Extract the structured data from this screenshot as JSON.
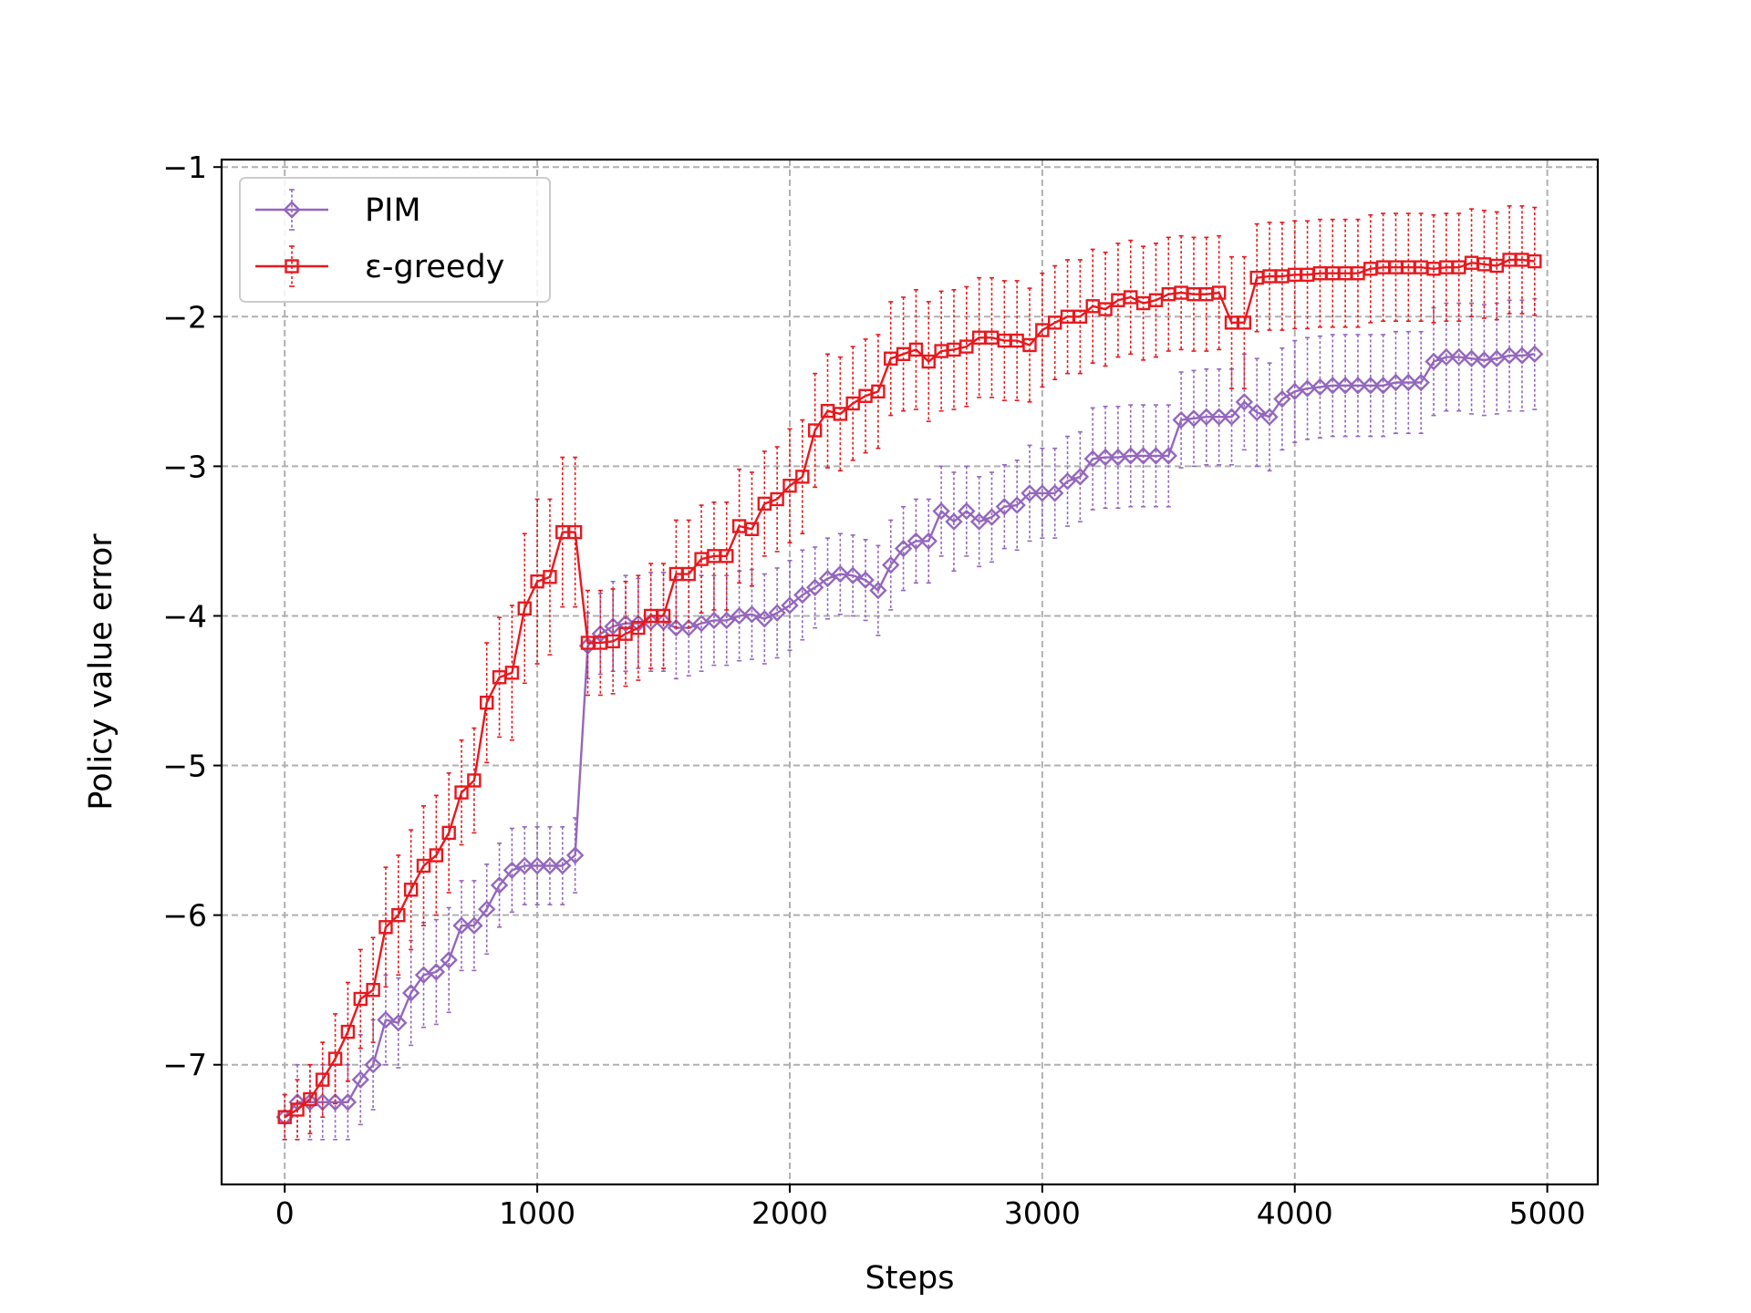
{
  "chart_data": {
    "type": "line",
    "title": "",
    "xlabel": "Steps",
    "ylabel": "Policy value error",
    "xlim": [
      -250,
      5200
    ],
    "ylim": [
      -7.8,
      -0.95
    ],
    "xticks": [
      0,
      1000,
      2000,
      3000,
      4000,
      5000
    ],
    "xtick_labels": [
      "0",
      "1000",
      "2000",
      "3000",
      "4000",
      "5000"
    ],
    "yticks": [
      -7,
      -6,
      -5,
      -4,
      -3,
      -2,
      -1
    ],
    "ytick_labels": [
      "−7",
      "−6",
      "−5",
      "−4",
      "−3",
      "−2",
      "−1"
    ],
    "grid": true,
    "legend_position": "top-left",
    "x": [
      0,
      50,
      100,
      150,
      200,
      250,
      300,
      350,
      400,
      450,
      500,
      550,
      600,
      650,
      700,
      750,
      800,
      850,
      900,
      950,
      1000,
      1050,
      1100,
      1150,
      1200,
      1250,
      1300,
      1350,
      1400,
      1450,
      1500,
      1550,
      1600,
      1650,
      1700,
      1750,
      1800,
      1850,
      1900,
      1950,
      2000,
      2050,
      2100,
      2150,
      2200,
      2250,
      2300,
      2350,
      2400,
      2450,
      2500,
      2550,
      2600,
      2650,
      2700,
      2750,
      2800,
      2850,
      2900,
      2950,
      3000,
      3050,
      3100,
      3150,
      3200,
      3250,
      3300,
      3350,
      3400,
      3450,
      3500,
      3550,
      3600,
      3650,
      3700,
      3750,
      3800,
      3850,
      3900,
      3950,
      4000,
      4050,
      4100,
      4150,
      4200,
      4250,
      4300,
      4350,
      4400,
      4450,
      4500,
      4550,
      4600,
      4650,
      4700,
      4750,
      4800,
      4850,
      4900,
      4950
    ],
    "series": [
      {
        "name": "PIM",
        "color": "#9467bd",
        "marker": "diamond",
        "values": [
          -7.35,
          -7.25,
          -7.25,
          -7.25,
          -7.25,
          -7.25,
          -7.1,
          -7.0,
          -6.7,
          -6.72,
          -6.52,
          -6.4,
          -6.38,
          -6.3,
          -6.07,
          -6.07,
          -5.96,
          -5.8,
          -5.7,
          -5.67,
          -5.67,
          -5.67,
          -5.67,
          -5.6,
          -4.2,
          -4.12,
          -4.07,
          -4.05,
          -4.05,
          -4.04,
          -4.04,
          -4.08,
          -4.08,
          -4.05,
          -4.03,
          -4.03,
          -4.0,
          -3.99,
          -4.02,
          -3.98,
          -3.93,
          -3.86,
          -3.81,
          -3.75,
          -3.72,
          -3.73,
          -3.76,
          -3.83,
          -3.66,
          -3.55,
          -3.5,
          -3.5,
          -3.3,
          -3.37,
          -3.3,
          -3.37,
          -3.34,
          -3.27,
          -3.26,
          -3.18,
          -3.18,
          -3.18,
          -3.1,
          -3.07,
          -2.95,
          -2.94,
          -2.94,
          -2.93,
          -2.93,
          -2.93,
          -2.93,
          -2.69,
          -2.68,
          -2.67,
          -2.67,
          -2.67,
          -2.57,
          -2.64,
          -2.67,
          -2.55,
          -2.5,
          -2.48,
          -2.47,
          -2.46,
          -2.46,
          -2.46,
          -2.46,
          -2.46,
          -2.44,
          -2.44,
          -2.44,
          -2.3,
          -2.27,
          -2.27,
          -2.28,
          -2.29,
          -2.28,
          -2.26,
          -2.26,
          -2.25
        ],
        "errors": [
          0.15,
          0.25,
          0.25,
          0.25,
          0.25,
          0.25,
          0.3,
          0.3,
          0.3,
          0.3,
          0.35,
          0.35,
          0.35,
          0.35,
          0.3,
          0.3,
          0.3,
          0.28,
          0.28,
          0.26,
          0.26,
          0.26,
          0.26,
          0.25,
          0.22,
          0.27,
          0.3,
          0.32,
          0.3,
          0.33,
          0.33,
          0.34,
          0.32,
          0.32,
          0.3,
          0.3,
          0.3,
          0.3,
          0.3,
          0.3,
          0.3,
          0.3,
          0.27,
          0.27,
          0.27,
          0.27,
          0.27,
          0.3,
          0.3,
          0.28,
          0.28,
          0.28,
          0.3,
          0.33,
          0.3,
          0.3,
          0.3,
          0.28,
          0.3,
          0.32,
          0.3,
          0.3,
          0.3,
          0.3,
          0.34,
          0.34,
          0.34,
          0.34,
          0.34,
          0.34,
          0.34,
          0.32,
          0.32,
          0.32,
          0.32,
          0.32,
          0.32,
          0.36,
          0.36,
          0.34,
          0.34,
          0.34,
          0.34,
          0.34,
          0.34,
          0.34,
          0.34,
          0.34,
          0.34,
          0.34,
          0.34,
          0.36,
          0.36,
          0.36,
          0.37,
          0.37,
          0.37,
          0.37,
          0.37,
          0.37
        ]
      },
      {
        "name": "ε-greedy",
        "color": "#e8181d",
        "marker": "square",
        "values": [
          -7.35,
          -7.3,
          -7.23,
          -7.1,
          -6.96,
          -6.78,
          -6.56,
          -6.5,
          -6.08,
          -6.0,
          -5.83,
          -5.67,
          -5.6,
          -5.45,
          -5.18,
          -5.1,
          -4.58,
          -4.41,
          -4.38,
          -3.95,
          -3.77,
          -3.74,
          -3.44,
          -3.44,
          -4.18,
          -4.18,
          -4.17,
          -4.12,
          -4.08,
          -4.0,
          -4.0,
          -3.72,
          -3.72,
          -3.62,
          -3.6,
          -3.6,
          -3.4,
          -3.42,
          -3.25,
          -3.22,
          -3.13,
          -3.07,
          -2.76,
          -2.63,
          -2.65,
          -2.58,
          -2.53,
          -2.5,
          -2.28,
          -2.25,
          -2.22,
          -2.3,
          -2.23,
          -2.22,
          -2.2,
          -2.14,
          -2.14,
          -2.16,
          -2.16,
          -2.19,
          -2.09,
          -2.04,
          -2.0,
          -2.0,
          -1.93,
          -1.95,
          -1.89,
          -1.87,
          -1.91,
          -1.89,
          -1.85,
          -1.84,
          -1.85,
          -1.85,
          -1.84,
          -2.04,
          -2.04,
          -1.74,
          -1.73,
          -1.73,
          -1.72,
          -1.72,
          -1.71,
          -1.71,
          -1.71,
          -1.71,
          -1.68,
          -1.67,
          -1.67,
          -1.67,
          -1.67,
          -1.68,
          -1.67,
          -1.67,
          -1.64,
          -1.65,
          -1.66,
          -1.62,
          -1.62,
          -1.63
        ],
        "errors": [
          0.15,
          0.2,
          0.23,
          0.25,
          0.3,
          0.33,
          0.33,
          0.35,
          0.4,
          0.4,
          0.4,
          0.4,
          0.4,
          0.4,
          0.35,
          0.35,
          0.4,
          0.4,
          0.45,
          0.5,
          0.55,
          0.52,
          0.5,
          0.5,
          0.35,
          0.35,
          0.35,
          0.35,
          0.35,
          0.35,
          0.35,
          0.36,
          0.36,
          0.36,
          0.36,
          0.36,
          0.38,
          0.38,
          0.35,
          0.35,
          0.38,
          0.38,
          0.38,
          0.38,
          0.38,
          0.38,
          0.38,
          0.38,
          0.38,
          0.38,
          0.4,
          0.4,
          0.4,
          0.4,
          0.4,
          0.4,
          0.4,
          0.4,
          0.4,
          0.38,
          0.38,
          0.38,
          0.38,
          0.38,
          0.38,
          0.38,
          0.38,
          0.38,
          0.38,
          0.38,
          0.38,
          0.38,
          0.38,
          0.38,
          0.38,
          0.44,
          0.44,
          0.36,
          0.36,
          0.36,
          0.36,
          0.36,
          0.36,
          0.36,
          0.36,
          0.36,
          0.36,
          0.36,
          0.36,
          0.36,
          0.36,
          0.36,
          0.36,
          0.36,
          0.36,
          0.36,
          0.36,
          0.36,
          0.36,
          0.36
        ]
      }
    ]
  }
}
